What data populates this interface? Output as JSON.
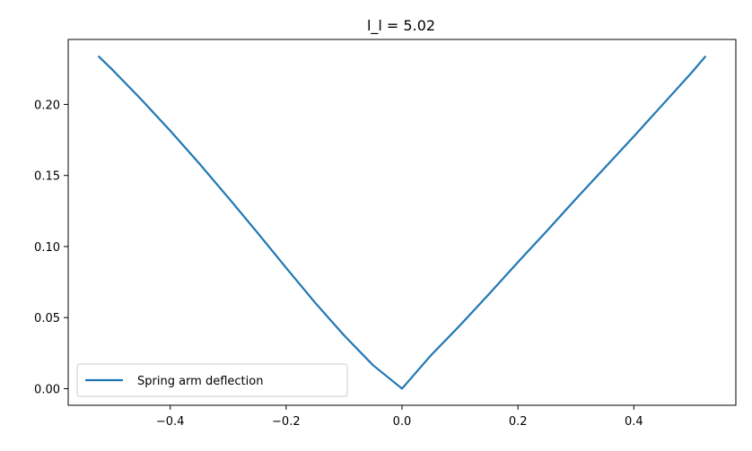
{
  "chart_data": {
    "type": "line",
    "title": "l_l = 5.02",
    "xlabel": "",
    "ylabel": "",
    "xlim": [
      -0.576,
      0.576
    ],
    "ylim": [
      -0.0117,
      0.2457
    ],
    "x_ticks": [
      -0.4,
      -0.2,
      0.0,
      0.2,
      0.4
    ],
    "x_tick_labels": [
      "−0.4",
      "−0.2",
      "0.0",
      "0.2",
      "0.4"
    ],
    "y_ticks": [
      0.0,
      0.05,
      0.1,
      0.15,
      0.2
    ],
    "y_tick_labels": [
      "0.00",
      "0.05",
      "0.10",
      "0.15",
      "0.20"
    ],
    "grid": false,
    "legend_position": "lower-left",
    "series": [
      {
        "name": "Spring arm deflection",
        "color": "#1f77b4",
        "x": [
          -0.524,
          -0.5,
          -0.45,
          -0.4,
          -0.35,
          -0.3,
          -0.25,
          -0.2,
          -0.15,
          -0.1,
          -0.05,
          0.0,
          0.05,
          0.1,
          0.15,
          0.2,
          0.25,
          0.3,
          0.35,
          0.4,
          0.45,
          0.5,
          0.524
        ],
        "y": [
          0.234,
          0.2245,
          0.2035,
          0.1815,
          0.1585,
          0.1345,
          0.11,
          0.085,
          0.0605,
          0.0375,
          0.0165,
          0.0,
          0.0235,
          0.0445,
          0.0665,
          0.089,
          0.111,
          0.1335,
          0.1555,
          0.1775,
          0.2,
          0.2225,
          0.234
        ]
      }
    ]
  }
}
